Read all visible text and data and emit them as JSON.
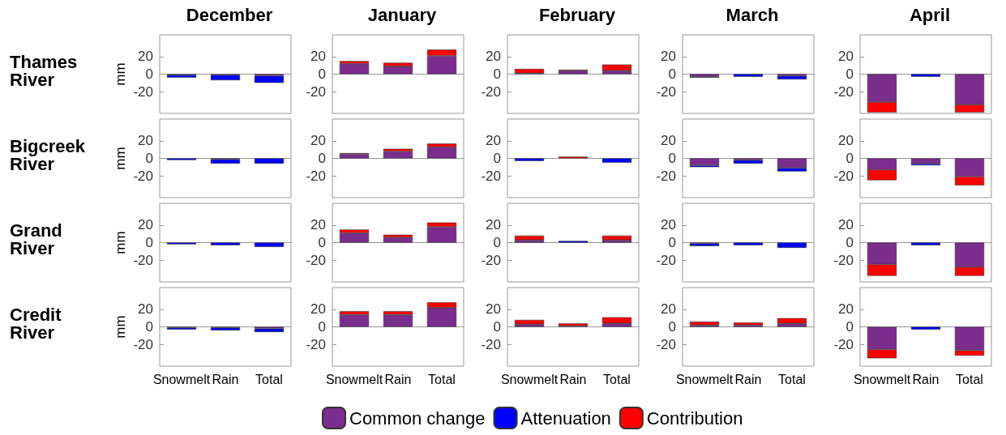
{
  "chart_data": [
    {
      "type": "bar",
      "title": "December",
      "ylabel": "mm",
      "annotations": [
        "Thames River"
      ],
      "stacked": true,
      "categories": [
        "Snowmelt",
        "Rain",
        "Total"
      ],
      "ylim": [
        -45,
        45
      ],
      "yticks": [
        -20,
        0,
        20
      ],
      "tick_labels": "y",
      "series": [
        {
          "color": "#7b2d8e",
          "values": [
            -1,
            -1,
            -2
          ]
        },
        {
          "color": "#0000ff",
          "values": [
            -3,
            -6,
            -8
          ]
        },
        {
          "color": "#ff0000",
          "values": [
            null,
            null,
            null
          ]
        }
      ]
    },
    {
      "type": "bar",
      "title": "January",
      "stacked": true,
      "categories": [
        "Snowmelt",
        "Rain",
        "Total"
      ],
      "ylim": [
        -45,
        45
      ],
      "yticks": [
        -20,
        0,
        20
      ],
      "tick_labels": "y",
      "series": [
        {
          "color": "#7b2d8e",
          "values": [
            12,
            9,
            21
          ]
        },
        {
          "color": "#0000ff",
          "values": [
            null,
            null,
            null
          ]
        },
        {
          "color": "#ff0000",
          "values": [
            3,
            4,
            7
          ]
        }
      ]
    },
    {
      "type": "bar",
      "title": "February",
      "stacked": true,
      "categories": [
        "Snowmelt",
        "Rain",
        "Total"
      ],
      "ylim": [
        -45,
        45
      ],
      "yticks": [
        -20,
        0,
        20
      ],
      "tick_labels": "y",
      "series": [
        {
          "color": "#7b2d8e",
          "values": [
            1,
            4,
            4
          ]
        },
        {
          "color": "#0000ff",
          "values": [
            null,
            null,
            null
          ]
        },
        {
          "color": "#ff0000",
          "values": [
            5,
            1,
            7
          ]
        }
      ]
    },
    {
      "type": "bar",
      "title": "March",
      "stacked": true,
      "categories": [
        "Snowmelt",
        "Rain",
        "Total"
      ],
      "ylim": [
        -45,
        45
      ],
      "yticks": [
        -20,
        0,
        20
      ],
      "tick_labels": "y",
      "series": [
        {
          "color": "#7b2d8e",
          "values": [
            -3,
            null,
            -2
          ]
        },
        {
          "color": "#0000ff",
          "values": [
            -1,
            -3,
            -4
          ]
        },
        {
          "color": "#ff0000",
          "values": [
            null,
            null,
            null
          ]
        }
      ]
    },
    {
      "type": "bar",
      "title": "April",
      "stacked": true,
      "categories": [
        "Snowmelt",
        "Rain",
        "Total"
      ],
      "ylim": [
        -45,
        45
      ],
      "yticks": [
        -20,
        0,
        20
      ],
      "tick_labels": "y",
      "series": [
        {
          "color": "#7b2d8e",
          "values": [
            -32,
            null,
            -35
          ]
        },
        {
          "color": "#0000ff",
          "values": [
            null,
            -3,
            null
          ]
        },
        {
          "color": "#ff0000",
          "values": [
            -12,
            null,
            -9
          ]
        }
      ]
    },
    {
      "type": "bar",
      "ylabel": "mm",
      "annotations": [
        "Bigcreek River"
      ],
      "stacked": true,
      "categories": [
        "Snowmelt",
        "Rain",
        "Total"
      ],
      "ylim": [
        -45,
        45
      ],
      "yticks": [
        -20,
        0,
        20
      ],
      "tick_labels": "y",
      "series": [
        {
          "color": "#7b2d8e",
          "values": [
            null,
            -1,
            null
          ]
        },
        {
          "color": "#0000ff",
          "values": [
            -2,
            -5,
            -6
          ]
        },
        {
          "color": "#ff0000",
          "values": [
            null,
            null,
            null
          ]
        }
      ]
    },
    {
      "type": "bar",
      "stacked": true,
      "categories": [
        "Snowmelt",
        "Rain",
        "Total"
      ],
      "ylim": [
        -45,
        45
      ],
      "yticks": [
        -20,
        0,
        20
      ],
      "tick_labels": "y",
      "series": [
        {
          "color": "#7b2d8e",
          "values": [
            5,
            8,
            13
          ]
        },
        {
          "color": "#0000ff",
          "values": [
            null,
            null,
            null
          ]
        },
        {
          "color": "#ff0000",
          "values": [
            1,
            3,
            4
          ]
        }
      ]
    },
    {
      "type": "bar",
      "stacked": true,
      "categories": [
        "Snowmelt",
        "Rain",
        "Total"
      ],
      "ylim": [
        -45,
        45
      ],
      "yticks": [
        -20,
        0,
        20
      ],
      "tick_labels": "y",
      "series": [
        {
          "color": "#7b2d8e",
          "values": [
            null,
            null,
            null
          ]
        },
        {
          "color": "#0000ff",
          "values": [
            -3,
            null,
            -5
          ]
        },
        {
          "color": "#ff0000",
          "values": [
            null,
            2,
            null
          ]
        }
      ]
    },
    {
      "type": "bar",
      "stacked": true,
      "categories": [
        "Snowmelt",
        "Rain",
        "Total"
      ],
      "ylim": [
        -45,
        45
      ],
      "yticks": [
        -20,
        0,
        20
      ],
      "tick_labels": "y",
      "series": [
        {
          "color": "#7b2d8e",
          "values": [
            -8,
            -2,
            -11
          ]
        },
        {
          "color": "#0000ff",
          "values": [
            -2,
            -4,
            -4
          ]
        },
        {
          "color": "#ff0000",
          "values": [
            null,
            null,
            null
          ]
        }
      ]
    },
    {
      "type": "bar",
      "stacked": true,
      "categories": [
        "Snowmelt",
        "Rain",
        "Total"
      ],
      "ylim": [
        -45,
        45
      ],
      "yticks": [
        -20,
        0,
        20
      ],
      "tick_labels": "y",
      "series": [
        {
          "color": "#7b2d8e",
          "values": [
            -13,
            -6,
            -21
          ]
        },
        {
          "color": "#0000ff",
          "values": [
            null,
            -2,
            null
          ]
        },
        {
          "color": "#ff0000",
          "values": [
            -12,
            null,
            -10
          ]
        }
      ]
    },
    {
      "type": "bar",
      "ylabel": "mm",
      "annotations": [
        "Grand River"
      ],
      "stacked": true,
      "categories": [
        "Snowmelt",
        "Rain",
        "Total"
      ],
      "ylim": [
        -45,
        45
      ],
      "yticks": [
        -20,
        0,
        20
      ],
      "tick_labels": "y",
      "series": [
        {
          "color": "#7b2d8e",
          "values": [
            null,
            null,
            null
          ]
        },
        {
          "color": "#0000ff",
          "values": [
            -2,
            -3,
            -5
          ]
        },
        {
          "color": "#ff0000",
          "values": [
            null,
            null,
            null
          ]
        }
      ]
    },
    {
      "type": "bar",
      "stacked": true,
      "categories": [
        "Snowmelt",
        "Rain",
        "Total"
      ],
      "ylim": [
        -45,
        45
      ],
      "yticks": [
        -20,
        0,
        20
      ],
      "tick_labels": "y",
      "series": [
        {
          "color": "#7b2d8e",
          "values": [
            11,
            6,
            18
          ]
        },
        {
          "color": "#0000ff",
          "values": [
            null,
            null,
            null
          ]
        },
        {
          "color": "#ff0000",
          "values": [
            4,
            3,
            5
          ]
        }
      ]
    },
    {
      "type": "bar",
      "stacked": true,
      "categories": [
        "Snowmelt",
        "Rain",
        "Total"
      ],
      "ylim": [
        -45,
        45
      ],
      "yticks": [
        -20,
        0,
        20
      ],
      "tick_labels": "y",
      "series": [
        {
          "color": "#7b2d8e",
          "values": [
            3,
            null,
            3
          ]
        },
        {
          "color": "#0000ff",
          "values": [
            null,
            2,
            null
          ]
        },
        {
          "color": "#ff0000",
          "values": [
            5,
            null,
            5
          ]
        }
      ]
    },
    {
      "type": "bar",
      "stacked": true,
      "categories": [
        "Snowmelt",
        "Rain",
        "Total"
      ],
      "ylim": [
        -45,
        45
      ],
      "yticks": [
        -20,
        0,
        20
      ],
      "tick_labels": "y",
      "series": [
        {
          "color": "#7b2d8e",
          "values": [
            -1,
            null,
            null
          ]
        },
        {
          "color": "#0000ff",
          "values": [
            -3,
            -3,
            -6
          ]
        },
        {
          "color": "#ff0000",
          "values": [
            null,
            null,
            null
          ]
        }
      ]
    },
    {
      "type": "bar",
      "stacked": true,
      "categories": [
        "Snowmelt",
        "Rain",
        "Total"
      ],
      "ylim": [
        -45,
        45
      ],
      "yticks": [
        -20,
        0,
        20
      ],
      "tick_labels": "y",
      "series": [
        {
          "color": "#7b2d8e",
          "values": [
            -25,
            null,
            -28
          ]
        },
        {
          "color": "#0000ff",
          "values": [
            null,
            -3,
            null
          ]
        },
        {
          "color": "#ff0000",
          "values": [
            -13,
            null,
            -10
          ]
        }
      ]
    },
    {
      "type": "bar",
      "ylabel": "mm",
      "annotations": [
        "Credit River"
      ],
      "stacked": true,
      "categories": [
        "Snowmelt",
        "Rain",
        "Total"
      ],
      "ylim": [
        -45,
        45
      ],
      "yticks": [
        -20,
        0,
        20
      ],
      "series": [
        {
          "color": "#7b2d8e",
          "values": [
            -1,
            -1,
            -2
          ]
        },
        {
          "color": "#0000ff",
          "values": [
            -2,
            -3,
            -4
          ]
        },
        {
          "color": "#ff0000",
          "values": [
            null,
            null,
            null
          ]
        }
      ]
    },
    {
      "type": "bar",
      "stacked": true,
      "categories": [
        "Snowmelt",
        "Rain",
        "Total"
      ],
      "ylim": [
        -45,
        45
      ],
      "yticks": [
        -20,
        0,
        20
      ],
      "series": [
        {
          "color": "#7b2d8e",
          "values": [
            14,
            14,
            22
          ]
        },
        {
          "color": "#0000ff",
          "values": [
            null,
            null,
            null
          ]
        },
        {
          "color": "#ff0000",
          "values": [
            4,
            4,
            6
          ]
        }
      ]
    },
    {
      "type": "bar",
      "stacked": true,
      "legend": "bottom",
      "categories": [
        "Snowmelt",
        "Rain",
        "Total"
      ],
      "ylim": [
        -45,
        45
      ],
      "yticks": [
        -20,
        0,
        20
      ],
      "series": [
        {
          "name": "Common change",
          "color": "#7b2d8e",
          "values": [
            3,
            1,
            4
          ]
        },
        {
          "name": "Attenuation",
          "color": "#0000ff",
          "values": [
            null,
            null,
            null
          ]
        },
        {
          "name": "Contribution",
          "color": "#ff0000",
          "values": [
            5,
            3,
            7
          ]
        }
      ]
    },
    {
      "type": "bar",
      "stacked": true,
      "categories": [
        "Snowmelt",
        "Rain",
        "Total"
      ],
      "ylim": [
        -45,
        45
      ],
      "yticks": [
        -20,
        0,
        20
      ],
      "series": [
        {
          "color": "#7b2d8e",
          "values": [
            2,
            2,
            4
          ]
        },
        {
          "color": "#0000ff",
          "values": [
            null,
            null,
            null
          ]
        },
        {
          "color": "#ff0000",
          "values": [
            4,
            3,
            6
          ]
        }
      ]
    },
    {
      "type": "bar",
      "stacked": true,
      "categories": [
        "Snowmelt",
        "Rain",
        "Total"
      ],
      "ylim": [
        -45,
        45
      ],
      "yticks": [
        -20,
        0,
        20
      ],
      "series": [
        {
          "color": "#7b2d8e",
          "values": [
            -26,
            null,
            -27
          ]
        },
        {
          "color": "#0000ff",
          "values": [
            null,
            -3,
            null
          ]
        },
        {
          "color": "#ff0000",
          "values": [
            -10,
            null,
            -6
          ]
        }
      ]
    }
  ]
}
